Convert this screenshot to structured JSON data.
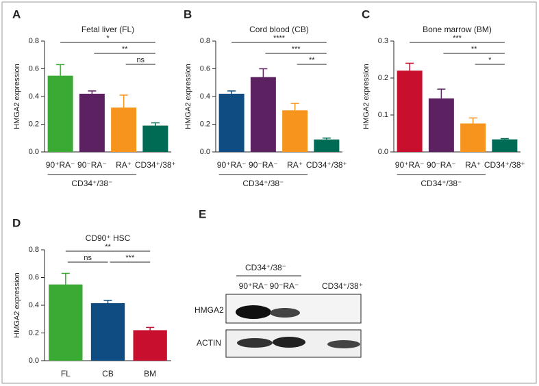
{
  "chart_data": [
    {
      "type": "bar",
      "panel": "A",
      "title": "Fetal liver (FL)",
      "ylabel": "HMGA2 expression",
      "categories": [
        "90⁺RA⁻",
        "90⁻RA⁻",
        "RA⁺",
        "CD34⁺/38⁺"
      ],
      "values": [
        0.55,
        0.42,
        0.32,
        0.19
      ],
      "errors": [
        0.08,
        0.02,
        0.09,
        0.02
      ],
      "colors": [
        "#3aaa35",
        "#5c2160",
        "#f7941d",
        "#006b54"
      ],
      "ylim": [
        0,
        0.8
      ],
      "yticks": [
        {
          "value": 0,
          "label": "0.0"
        },
        0.2,
        0.4,
        0.6,
        0.8
      ],
      "group": {
        "label": "CD34⁺/38⁻",
        "categories": [
          "90⁺RA⁻",
          "90⁻RA⁻",
          "RA⁺"
        ]
      },
      "comparisons": [
        {
          "label": "*",
          "pair": [
            "90⁺RA⁻",
            "CD34⁺/38⁺"
          ]
        },
        {
          "label": "**",
          "pair": [
            "90⁻RA⁻",
            "CD34⁺/38⁺"
          ]
        },
        {
          "label": "ns",
          "pair": [
            "RA⁺",
            "CD34⁺/38⁺"
          ]
        }
      ]
    },
    {
      "type": "bar",
      "panel": "B",
      "title": "Cord blood (CB)",
      "ylabel": "HMGA2 expression",
      "categories": [
        "90⁺RA⁻",
        "90⁻RA⁻",
        "RA⁺",
        "CD34⁺/38⁺"
      ],
      "values": [
        0.42,
        0.54,
        0.3,
        0.09
      ],
      "errors": [
        0.02,
        0.06,
        0.05,
        0.01
      ],
      "colors": [
        "#0f4c81",
        "#5c2160",
        "#f7941d",
        "#006b54"
      ],
      "ylim": [
        0,
        0.8
      ],
      "yticks": [
        {
          "value": 0,
          "label": "0.0"
        },
        0.2,
        0.4,
        0.6,
        0.8
      ],
      "group": {
        "label": "CD34⁺/38⁻",
        "categories": [
          "90⁺RA⁻",
          "90⁻RA⁻",
          "RA⁺"
        ]
      },
      "comparisons": [
        {
          "label": "****",
          "pair": [
            "90⁺RA⁻",
            "CD34⁺/38⁺"
          ]
        },
        {
          "label": "***",
          "pair": [
            "90⁻RA⁻",
            "CD34⁺/38⁺"
          ]
        },
        {
          "label": "**",
          "pair": [
            "RA⁺",
            "CD34⁺/38⁺"
          ]
        }
      ]
    },
    {
      "type": "bar",
      "panel": "C",
      "title": "Bone marrow (BM)",
      "ylabel": "HMGA2 expression",
      "categories": [
        "90⁺RA⁻",
        "90⁻RA⁻",
        "RA⁺",
        "CD34⁺/38⁺"
      ],
      "values": [
        0.22,
        0.145,
        0.077,
        0.034
      ],
      "errors": [
        0.02,
        0.025,
        0.015,
        0.002
      ],
      "colors": [
        "#c8102e",
        "#5c2160",
        "#f7941d",
        "#006b54"
      ],
      "ylim": [
        0,
        0.3
      ],
      "yticks": [
        {
          "value": 0,
          "label": "0.0"
        },
        0.1,
        0.2,
        0.3
      ],
      "group": {
        "label": "CD34⁺/38⁻",
        "categories": [
          "90⁺RA⁻",
          "90⁻RA⁻",
          "RA⁺"
        ]
      },
      "comparisons": [
        {
          "label": "***",
          "pair": [
            "90⁺RA⁻",
            "CD34⁺/38⁺"
          ]
        },
        {
          "label": "**",
          "pair": [
            "90⁻RA⁻",
            "CD34⁺/38⁺"
          ]
        },
        {
          "label": "*",
          "pair": [
            "RA⁺",
            "CD34⁺/38⁺"
          ]
        }
      ]
    },
    {
      "type": "bar",
      "panel": "D",
      "title": "CD90⁺ HSC",
      "ylabel": "HMGA2 expression",
      "categories": [
        "FL",
        "CB",
        "BM"
      ],
      "values": [
        0.55,
        0.415,
        0.22
      ],
      "errors": [
        0.08,
        0.02,
        0.02
      ],
      "colors": [
        "#3aaa35",
        "#0f4c81",
        "#c8102e"
      ],
      "ylim": [
        0,
        0.8
      ],
      "yticks": [
        {
          "value": 0,
          "label": "0.0"
        },
        0.2,
        0.4,
        0.6,
        0.8
      ],
      "comparisons": [
        {
          "label": "**",
          "pair": [
            "FL",
            "BM"
          ]
        },
        {
          "label": "ns",
          "pair": [
            "FL",
            "CB"
          ]
        },
        {
          "label": "***",
          "pair": [
            "CB",
            "BM"
          ]
        }
      ]
    }
  ],
  "blot": {
    "panel": "E",
    "group": "CD34⁺/38⁻",
    "lanes": [
      "90⁺RA⁻",
      "90⁻RA⁻",
      "CD34⁺/38⁺"
    ],
    "rows": [
      "HMGA2",
      "ACTIN"
    ]
  }
}
